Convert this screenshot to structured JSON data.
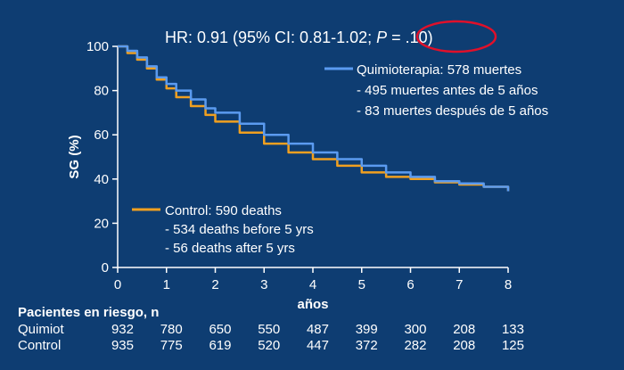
{
  "chart_data": {
    "type": "line",
    "title": "HR: 0.91 (95% CI: 0.81-1.02; ",
    "title_p_italic": "P",
    "title_p_value": " = .10)",
    "xlabel": "años",
    "ylabel": "SG (%)",
    "xlim": [
      0,
      8
    ],
    "ylim": [
      0,
      100
    ],
    "x_ticks": [
      "0",
      "1",
      "2",
      "3",
      "4",
      "5",
      "6",
      "7",
      "8"
    ],
    "y_ticks": [
      "0",
      "20",
      "40",
      "60",
      "80",
      "100"
    ],
    "grid": false,
    "series": [
      {
        "name": "Quimioterapia: 578 muertes",
        "color": "#5b9bf0",
        "x": [
          0,
          0.2,
          0.4,
          0.6,
          0.8,
          1.0,
          1.2,
          1.5,
          1.8,
          2.0,
          2.5,
          3.0,
          3.5,
          4.0,
          4.5,
          5.0,
          5.5,
          6.0,
          6.5,
          7.0,
          7.5,
          8.0
        ],
        "y": [
          100,
          98,
          95,
          91,
          86,
          83,
          80,
          76,
          72,
          70,
          65,
          60,
          56,
          52,
          49,
          46,
          43,
          41,
          39,
          38,
          36.5,
          34.5
        ]
      },
      {
        "name": "Control: 590 deaths",
        "color": "#f0a020",
        "x": [
          0,
          0.2,
          0.4,
          0.6,
          0.8,
          1.0,
          1.2,
          1.5,
          1.8,
          2.0,
          2.5,
          3.0,
          3.5,
          4.0,
          4.5,
          5.0,
          5.5,
          6.0,
          6.5,
          7.0,
          7.5,
          8.0
        ],
        "y": [
          100,
          97,
          94,
          90,
          85,
          81,
          77,
          73,
          69,
          66,
          61,
          56,
          52,
          49,
          46,
          43,
          41,
          40,
          38.5,
          37.5,
          36.5,
          34.5
        ]
      }
    ],
    "legend_quimio": {
      "label": "Quimioterapia: 578 muertes",
      "notes": [
        "- 495 muertes antes de 5 años",
        "- 83 muertes después de 5 años"
      ]
    },
    "legend_control": {
      "label": "Control: 590 deaths",
      "notes": [
        "- 534 deaths  before 5 yrs",
        "- 56 deaths  after 5 yrs"
      ]
    },
    "at_risk": {
      "header": "Pacientes en riesgo,  n",
      "rows": [
        {
          "label": "Quimiot",
          "values": [
            "932",
            "780",
            "650",
            "550",
            "487",
            "399",
            "300",
            "208",
            "133"
          ]
        },
        {
          "label": "Control",
          "values": [
            "935",
            "775",
            "619",
            "520",
            "447",
            "372",
            "282",
            "208",
            "125"
          ]
        }
      ]
    },
    "highlight_color": "#e0102a"
  }
}
